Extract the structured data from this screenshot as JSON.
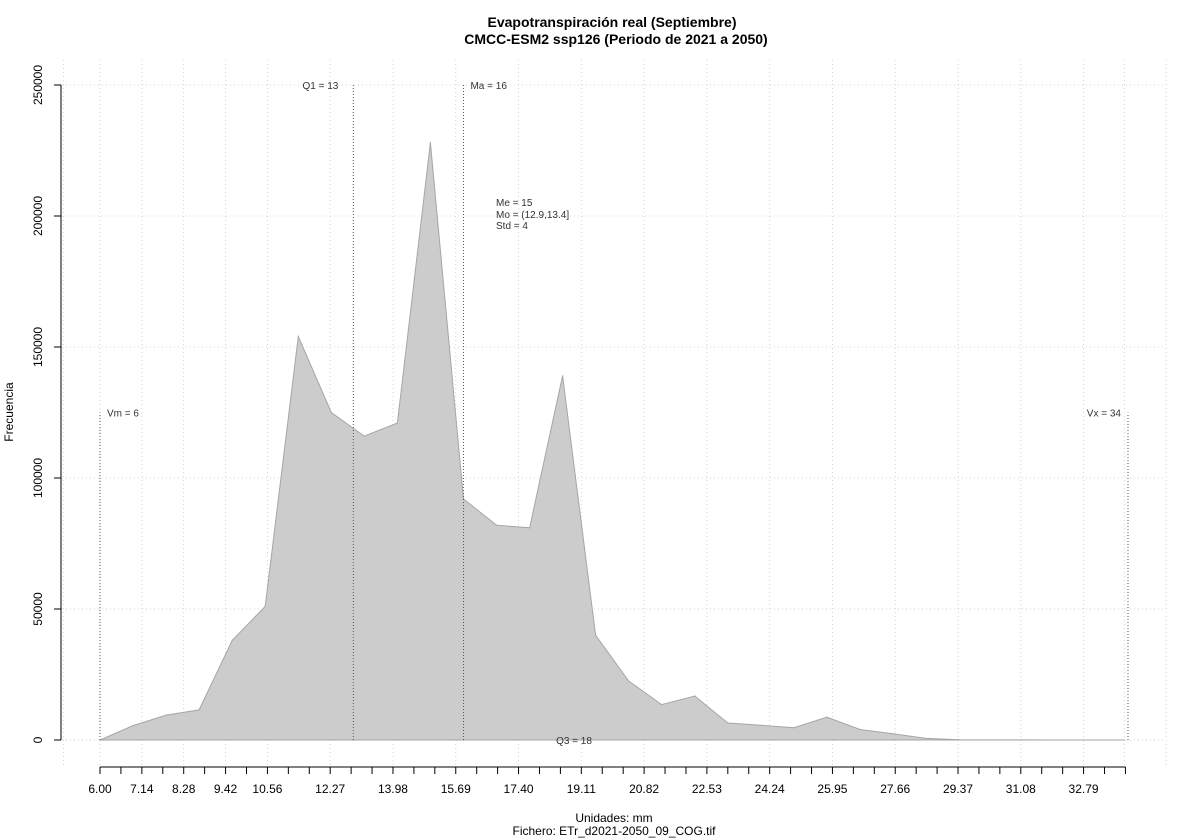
{
  "chart_data": {
    "type": "area",
    "title": "Evapotranspiración real (Septiembre)",
    "subtitle": "CMCC-ESM2 ssp126 (Periodo de 2021 a 2050)",
    "xlabel": "Unidades: mm",
    "ylabel": "Frecuencia",
    "caption": "Fichero: ETr_d2021-2050_09_COG.tif",
    "xlim": [
      6.0,
      34.0
    ],
    "ylim": [
      0,
      250000
    ],
    "grid": true,
    "fill_color": "#cccccc",
    "line_color": "#a6a6a6",
    "x_ticks": [
      6.0,
      7.14,
      8.28,
      9.42,
      10.56,
      12.27,
      13.98,
      15.69,
      17.4,
      19.11,
      20.82,
      22.53,
      24.24,
      25.95,
      27.66,
      29.37,
      31.08,
      32.79
    ],
    "x_tick_labels": [
      "6.00",
      "7.14",
      "8.28",
      "9.42",
      "10.56",
      "12.27",
      "13.98",
      "15.69",
      "17.40",
      "19.11",
      "20.82",
      "22.53",
      "24.24",
      "25.95",
      "27.66",
      "29.37",
      "31.08",
      "32.79"
    ],
    "x_minor_ticks": [
      6.57,
      7.71,
      8.85,
      9.99,
      11.13,
      11.7,
      12.84,
      13.41,
      14.55,
      15.12,
      16.26,
      16.83,
      17.97,
      18.54,
      19.68,
      20.25,
      21.39,
      21.96,
      23.1,
      23.67,
      24.81,
      25.38,
      26.52,
      27.09,
      28.23,
      28.8,
      29.94,
      30.51,
      31.65,
      32.22,
      33.36,
      33.93
    ],
    "y_ticks": [
      0,
      50000,
      100000,
      150000,
      200000,
      250000
    ],
    "y_tick_labels": [
      "0",
      "50000",
      "100000",
      "150000",
      "200000",
      "250000"
    ],
    "x": [
      6.0,
      6.9,
      7.8,
      8.7,
      9.6,
      10.5,
      11.4,
      12.3,
      13.2,
      14.1,
      15.0,
      15.9,
      16.8,
      17.7,
      18.6,
      19.5,
      20.4,
      21.3,
      22.2,
      23.1,
      24.0,
      24.9,
      25.8,
      26.7,
      27.6,
      28.5,
      29.4,
      30.3,
      31.2,
      32.1,
      33.0,
      33.9
    ],
    "y": [
      0,
      5500,
      9500,
      11500,
      38000,
      51000,
      154000,
      125000,
      116000,
      121000,
      228000,
      92000,
      82000,
      81000,
      139000,
      40000,
      22500,
      13500,
      16800,
      6500,
      5600,
      4700,
      8700,
      4000,
      2400,
      600,
      100,
      50,
      30,
      10,
      5,
      0
    ],
    "reference_lines": [
      {
        "label": "Vm = 6",
        "x": 6.0,
        "y_top": 125000
      },
      {
        "label": "Q1 = 13",
        "x": 12.9,
        "y_top": 250000
      },
      {
        "label": "Ma = 16",
        "x": 15.9,
        "y_top": 250000
      },
      {
        "label": "Vx = 34",
        "x": 34.0,
        "y_top": 125000
      }
    ],
    "q3_label": "Q3 = 18",
    "stats": [
      "Me = 15",
      "Mo = (12.9,13.4]",
      "Std = 4"
    ]
  }
}
